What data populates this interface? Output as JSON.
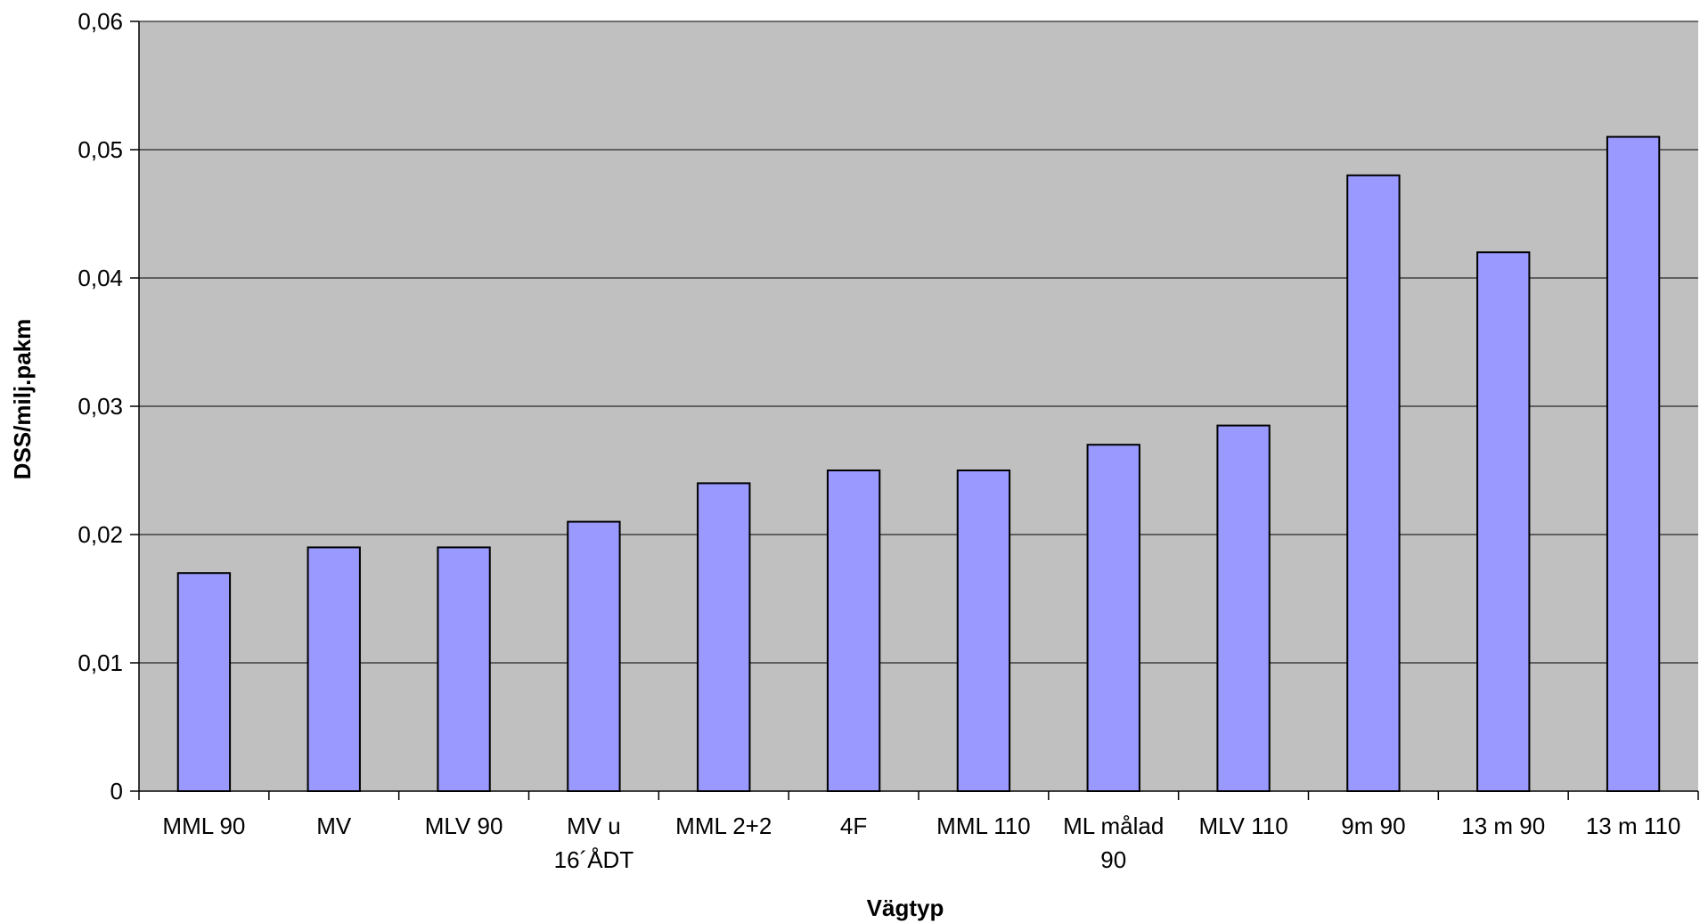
{
  "chart_data": {
    "type": "bar",
    "title": "",
    "xlabel": "Vägtyp",
    "ylabel": "DSS/milj.pakm",
    "ylim": [
      0,
      0.06
    ],
    "yticks": [
      0,
      0.01,
      0.02,
      0.03,
      0.04,
      0.05,
      0.06
    ],
    "ytick_labels": [
      "0",
      "0,01",
      "0,02",
      "0,03",
      "0,04",
      "0,05",
      "0,06"
    ],
    "grid": true,
    "legend": "none",
    "categories": [
      [
        "MML 90"
      ],
      [
        "MV"
      ],
      [
        "MLV 90"
      ],
      [
        "MV u",
        "16´ÅDT"
      ],
      [
        "MML 2+2"
      ],
      [
        "4F"
      ],
      [
        "MML 110"
      ],
      [
        "ML målad",
        "90"
      ],
      [
        "MLV 110"
      ],
      [
        "9m 90"
      ],
      [
        "13 m 90"
      ],
      [
        "13 m 110"
      ]
    ],
    "values": [
      0.017,
      0.019,
      0.019,
      0.021,
      0.024,
      0.025,
      0.025,
      0.027,
      0.0285,
      0.048,
      0.042,
      0.051
    ],
    "colors": {
      "bar_fill": "#9999ff",
      "bar_stroke": "#000000",
      "plot_background": "#c0c0c0",
      "gridline": "#000000"
    }
  }
}
